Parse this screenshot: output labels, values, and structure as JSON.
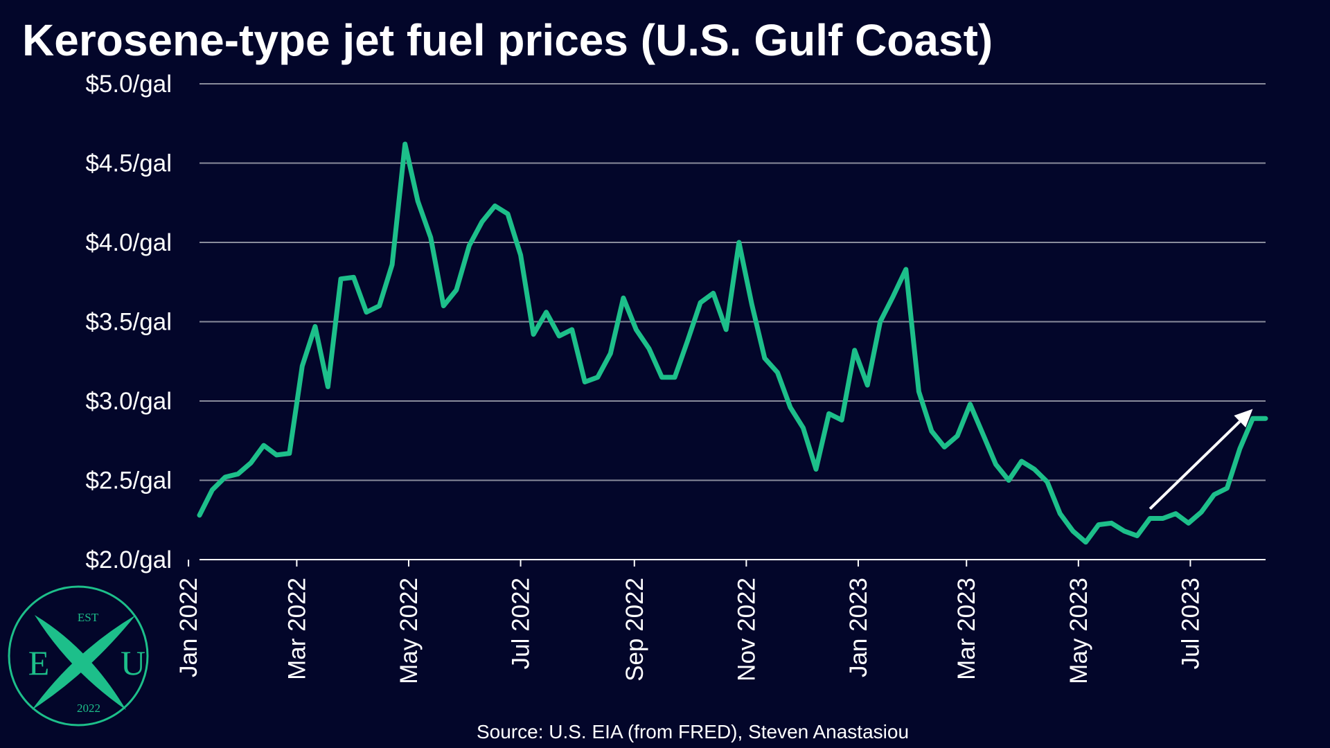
{
  "colors": {
    "background": "#03062a",
    "text": "#ffffff",
    "grid": "#8a8c9c",
    "line": "#1dbf8a",
    "arrow": "#ffffff",
    "logo": "#1dbf8a"
  },
  "source": "Source: U.S. EIA (from FRED), Steven Anastasiou",
  "logo": {
    "top": "EST",
    "left": "E",
    "right": "U",
    "bottom": "2022",
    "icon": "crossed-x-emblem"
  },
  "chart_data": {
    "type": "line",
    "title": "Kerosene-type jet fuel prices (U.S. Gulf Coast)",
    "xlabel": "",
    "ylabel": "",
    "ylim": [
      2.0,
      5.0
    ],
    "yticks": [
      2.0,
      2.5,
      3.0,
      3.5,
      4.0,
      4.5,
      5.0
    ],
    "ytick_labels": [
      "$2.0/gal",
      "$2.5/gal",
      "$3.0/gal",
      "$3.5/gal",
      "$4.0/gal",
      "$4.5/gal",
      "$5.0/gal"
    ],
    "xlim": [
      "2022-01-07",
      "2023-08-11"
    ],
    "xticks": [
      "2022-01-01",
      "2022-03-01",
      "2022-05-01",
      "2022-07-01",
      "2022-09-01",
      "2022-11-01",
      "2023-01-01",
      "2023-03-01",
      "2023-05-01",
      "2023-07-01"
    ],
    "xtick_labels": [
      "Jan 2022",
      "Mar 2022",
      "May 2022",
      "Jul 2022",
      "Sep 2022",
      "Nov 2022",
      "Jan 2023",
      "Mar 2023",
      "May 2023",
      "Jul 2023"
    ],
    "grid": "horizontal",
    "annotation": {
      "type": "arrow",
      "from": [
        "2023-06-09",
        2.32
      ],
      "to": [
        "2023-08-04",
        2.95
      ]
    },
    "series": [
      {
        "x": [
          "2022-01-07",
          "2022-01-14",
          "2022-01-21",
          "2022-01-28",
          "2022-02-04",
          "2022-02-11",
          "2022-02-18",
          "2022-02-25",
          "2022-03-04",
          "2022-03-11",
          "2022-03-18",
          "2022-03-25",
          "2022-04-01",
          "2022-04-08",
          "2022-04-15",
          "2022-04-22",
          "2022-04-29",
          "2022-05-06",
          "2022-05-13",
          "2022-05-20",
          "2022-05-27",
          "2022-06-03",
          "2022-06-10",
          "2022-06-17",
          "2022-06-24",
          "2022-07-01",
          "2022-07-08",
          "2022-07-15",
          "2022-07-22",
          "2022-07-29",
          "2022-08-05",
          "2022-08-12",
          "2022-08-19",
          "2022-08-26",
          "2022-09-02",
          "2022-09-09",
          "2022-09-16",
          "2022-09-23",
          "2022-09-30",
          "2022-10-07",
          "2022-10-14",
          "2022-10-21",
          "2022-10-28",
          "2022-11-04",
          "2022-11-11",
          "2022-11-18",
          "2022-11-25",
          "2022-12-02",
          "2022-12-09",
          "2022-12-16",
          "2022-12-23",
          "2022-12-30",
          "2023-01-06",
          "2023-01-13",
          "2023-01-20",
          "2023-01-27",
          "2023-02-03",
          "2023-02-10",
          "2023-02-17",
          "2023-02-24",
          "2023-03-03",
          "2023-03-10",
          "2023-03-17",
          "2023-03-24",
          "2023-03-31",
          "2023-04-07",
          "2023-04-14",
          "2023-04-21",
          "2023-04-28",
          "2023-05-05",
          "2023-05-12",
          "2023-05-19",
          "2023-05-26",
          "2023-06-02",
          "2023-06-09",
          "2023-06-16",
          "2023-06-23",
          "2023-06-30",
          "2023-07-07",
          "2023-07-14",
          "2023-07-21",
          "2023-07-28",
          "2023-08-04",
          "2023-08-11"
        ],
        "values": [
          2.28,
          2.44,
          2.52,
          2.54,
          2.61,
          2.72,
          2.66,
          2.67,
          3.22,
          3.47,
          3.09,
          3.77,
          3.78,
          3.56,
          3.6,
          3.86,
          4.62,
          4.26,
          4.03,
          3.6,
          3.7,
          3.98,
          4.13,
          4.23,
          4.18,
          3.92,
          3.42,
          3.56,
          3.41,
          3.45,
          3.12,
          3.15,
          3.3,
          3.65,
          3.45,
          3.33,
          3.15,
          3.15,
          3.38,
          3.62,
          3.68,
          3.45,
          4.0,
          3.61,
          3.27,
          3.18,
          2.96,
          2.83,
          2.57,
          2.92,
          2.88,
          3.32,
          3.1,
          3.5,
          3.66,
          3.83,
          3.06,
          2.81,
          2.71,
          2.78,
          2.98,
          2.79,
          2.6,
          2.5,
          2.62,
          2.57,
          2.49,
          2.29,
          2.18,
          2.11,
          2.22,
          2.23,
          2.18,
          2.15,
          2.26,
          2.26,
          2.29,
          2.23,
          2.3,
          2.41,
          2.45,
          2.7,
          2.89,
          2.89
        ]
      }
    ]
  }
}
